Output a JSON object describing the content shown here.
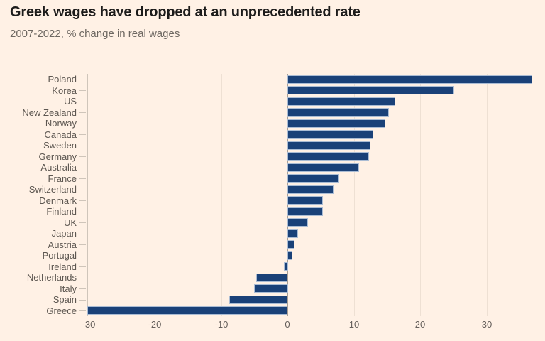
{
  "title": "Greek wages have dropped at an unprecedented rate",
  "subtitle": "2007-2022, % change in real wages",
  "colors": {
    "background": "#fff1e5",
    "bar": "#1a4178",
    "bar_border": "#aabcd4",
    "title": "#1c1b1a",
    "subtitle": "#6e6862",
    "label": "#5d5751",
    "axis": "#66605c",
    "grid": "#eee0d3",
    "zero_line": "#a89e94",
    "tick": "#cfc5ba"
  },
  "chart_data": {
    "type": "bar",
    "orientation": "horizontal",
    "title": "Greek wages have dropped at an unprecedented rate",
    "subtitle": "2007-2022, % change in real wages",
    "xlabel": "",
    "ylabel": "",
    "categories": [
      "Poland",
      "Korea",
      "US",
      "New Zealand",
      "Norway",
      "Canada",
      "Sweden",
      "Germany",
      "Australia",
      "France",
      "Switzerland",
      "Denmark",
      "Finland",
      "UK",
      "Japan",
      "Austria",
      "Portugal",
      "Ireland",
      "Netherlands",
      "Italy",
      "Spain",
      "Greece"
    ],
    "values": [
      36.9,
      25.2,
      16.3,
      15.3,
      14.8,
      12.9,
      12.5,
      12.3,
      10.8,
      7.8,
      7.0,
      5.4,
      5.3,
      3.1,
      1.6,
      1.1,
      0.7,
      -0.6,
      -4.7,
      -5.1,
      -8.8,
      -30.2
    ],
    "x_ticks": [
      -30,
      -20,
      -10,
      0,
      10,
      20,
      30
    ],
    "xlim": [
      -30.2,
      36.9
    ],
    "grid": "vertical-faint",
    "legend": "none",
    "unit": "%"
  }
}
